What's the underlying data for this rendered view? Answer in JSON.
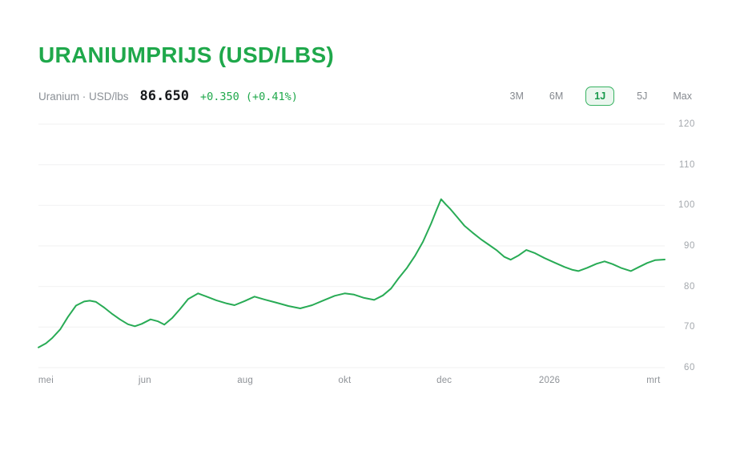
{
  "page": {
    "title": "URANIUMPRIJS (USD/LBS)"
  },
  "quote": {
    "name": "Uranium · USD/lbs",
    "price": "86.650",
    "change": "+0.350 (+0.41%)"
  },
  "ranges": [
    {
      "label": "3M",
      "selected": false
    },
    {
      "label": "6M",
      "selected": false
    },
    {
      "label": "1J",
      "selected": true
    },
    {
      "label": "5J",
      "selected": false
    },
    {
      "label": "Max",
      "selected": false
    }
  ],
  "colors": {
    "accent_green": "#1fa84b",
    "line_green": "#28ab55",
    "selected_bg": "#eaf6ee",
    "selected_border": "#37b261",
    "text_dark": "#17191c",
    "text_gray": "#8b9096",
    "axis_gray": "#a4a8ad",
    "grid": "#f1f1f2"
  },
  "chart_data": {
    "type": "line",
    "title": "URANIUMPRIJS (USD/LBS)",
    "ylabel": "USD/lbs",
    "ylim": [
      60,
      120
    ],
    "y_ticks": [
      120,
      110,
      100,
      90,
      80,
      70,
      60
    ],
    "x_ticks": [
      {
        "label": "mei",
        "pos": 0.012
      },
      {
        "label": "jun",
        "pos": 0.17
      },
      {
        "label": "aug",
        "pos": 0.33
      },
      {
        "label": "okt",
        "pos": 0.489
      },
      {
        "label": "dec",
        "pos": 0.648
      },
      {
        "label": "2026",
        "pos": 0.816
      },
      {
        "label": "mrt",
        "pos": 0.982
      }
    ],
    "grid": "horizontal",
    "legend": "none",
    "series": [
      {
        "name": "Uranium USD/lbs",
        "color": "#28ab55",
        "points": [
          [
            0.0,
            65.0
          ],
          [
            0.012,
            66.0
          ],
          [
            0.022,
            67.3
          ],
          [
            0.035,
            69.5
          ],
          [
            0.047,
            72.5
          ],
          [
            0.06,
            75.3
          ],
          [
            0.073,
            76.3
          ],
          [
            0.082,
            76.5
          ],
          [
            0.092,
            76.2
          ],
          [
            0.105,
            74.8
          ],
          [
            0.118,
            73.2
          ],
          [
            0.13,
            71.9
          ],
          [
            0.143,
            70.7
          ],
          [
            0.154,
            70.2
          ],
          [
            0.165,
            70.8
          ],
          [
            0.179,
            71.9
          ],
          [
            0.191,
            71.4
          ],
          [
            0.201,
            70.6
          ],
          [
            0.214,
            72.3
          ],
          [
            0.226,
            74.4
          ],
          [
            0.239,
            76.9
          ],
          [
            0.255,
            78.3
          ],
          [
            0.267,
            77.6
          ],
          [
            0.284,
            76.6
          ],
          [
            0.301,
            75.8
          ],
          [
            0.313,
            75.4
          ],
          [
            0.329,
            76.4
          ],
          [
            0.345,
            77.5
          ],
          [
            0.361,
            76.8
          ],
          [
            0.38,
            76.0
          ],
          [
            0.399,
            75.2
          ],
          [
            0.418,
            74.6
          ],
          [
            0.437,
            75.4
          ],
          [
            0.457,
            76.7
          ],
          [
            0.473,
            77.7
          ],
          [
            0.489,
            78.3
          ],
          [
            0.504,
            78.0
          ],
          [
            0.52,
            77.2
          ],
          [
            0.536,
            76.7
          ],
          [
            0.55,
            77.8
          ],
          [
            0.563,
            79.5
          ],
          [
            0.575,
            82.0
          ],
          [
            0.588,
            84.5
          ],
          [
            0.601,
            87.5
          ],
          [
            0.614,
            91.0
          ],
          [
            0.627,
            95.5
          ],
          [
            0.636,
            99.0
          ],
          [
            0.643,
            101.5
          ],
          [
            0.65,
            100.3
          ],
          [
            0.657,
            99.2
          ],
          [
            0.668,
            97.2
          ],
          [
            0.68,
            95.0
          ],
          [
            0.693,
            93.3
          ],
          [
            0.706,
            91.7
          ],
          [
            0.719,
            90.3
          ],
          [
            0.732,
            88.9
          ],
          [
            0.744,
            87.3
          ],
          [
            0.754,
            86.6
          ],
          [
            0.767,
            87.7
          ],
          [
            0.779,
            89.0
          ],
          [
            0.793,
            88.2
          ],
          [
            0.808,
            87.0
          ],
          [
            0.824,
            85.9
          ],
          [
            0.84,
            84.8
          ],
          [
            0.853,
            84.1
          ],
          [
            0.862,
            83.8
          ],
          [
            0.876,
            84.6
          ],
          [
            0.891,
            85.6
          ],
          [
            0.904,
            86.2
          ],
          [
            0.917,
            85.5
          ],
          [
            0.93,
            84.6
          ],
          [
            0.946,
            83.8
          ],
          [
            0.959,
            84.8
          ],
          [
            0.972,
            85.8
          ],
          [
            0.985,
            86.5
          ],
          [
            1.0,
            86.65
          ]
        ]
      }
    ]
  }
}
